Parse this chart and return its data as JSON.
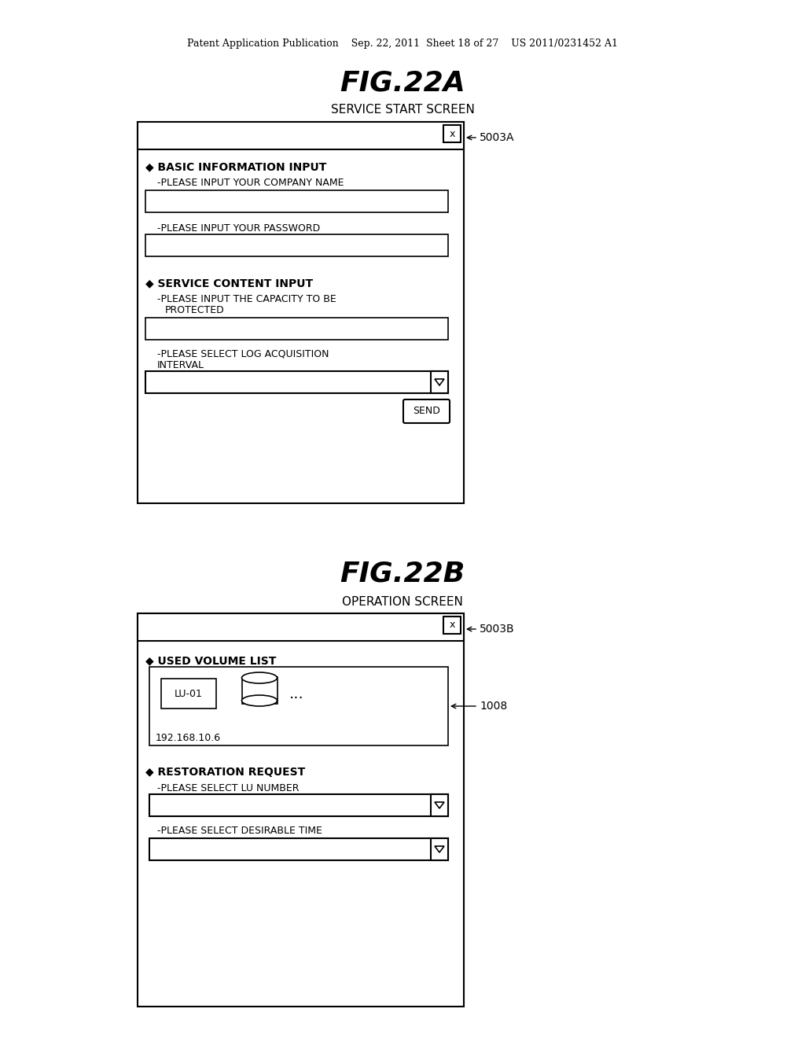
{
  "bg_color": "#ffffff",
  "header_text": "Patent Application Publication    Sep. 22, 2011  Sheet 18 of 27    US 2011/0231452 A1",
  "fig22a_title": "FIG.22A",
  "fig22a_subtitle": "SERVICE START SCREEN",
  "fig22a_label": "5003A",
  "fig22b_title": "FIG.22B",
  "fig22b_subtitle": "OPERATION SCREEN",
  "fig22b_label": "5003B",
  "label_1008": "1008"
}
